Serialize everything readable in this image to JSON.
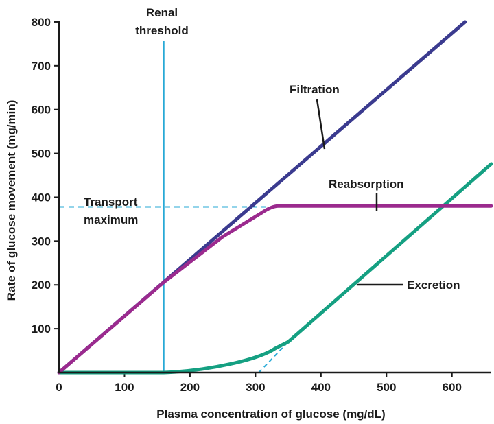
{
  "chart_data": {
    "type": "line",
    "title": "",
    "xlabel": "Plasma concentration of glucose (mg/dL)",
    "ylabel": "Rate of glucose movement (mg/min)",
    "xlim": [
      0,
      660
    ],
    "ylim": [
      0,
      850
    ],
    "x_ticks": [
      "0",
      "100",
      "200",
      "300",
      "400",
      "500",
      "600"
    ],
    "y_ticks": [
      "100",
      "200",
      "300",
      "400",
      "500",
      "600",
      "700",
      "800"
    ],
    "grid": false,
    "colors": {
      "filtration": "#3b3b8f",
      "reabsorption": "#9b2a8e",
      "excretion": "#15a082",
      "threshold": "#27a9d6",
      "axis": "#1a1a1a"
    },
    "series": [
      {
        "name": "Filtration",
        "x": [
          0,
          620
        ],
        "y": [
          0,
          800
        ]
      },
      {
        "name": "Reabsorption",
        "x": [
          0,
          160,
          250,
          310,
          335,
          660
        ],
        "y": [
          0,
          206,
          310,
          365,
          380,
          380
        ]
      },
      {
        "name": "Excretion",
        "x": [
          0,
          100,
          160,
          200,
          250,
          300,
          330,
          350,
          660
        ],
        "y": [
          0,
          0,
          0,
          3,
          14,
          40,
          55,
          70,
          476
        ]
      }
    ],
    "reference_lines": {
      "renal_threshold_x": 160,
      "transport_maximum_y": 378,
      "excretion_extrapolation": {
        "x": [
          305,
          350
        ],
        "y": [
          0,
          70
        ]
      }
    },
    "annotations": {
      "renal_threshold": [
        "Renal",
        "threshold"
      ],
      "transport_maximum": [
        "Transport",
        "maximum"
      ],
      "filtration": "Filtration",
      "reabsorption": "Reabsorption",
      "excretion": "Excretion"
    }
  }
}
